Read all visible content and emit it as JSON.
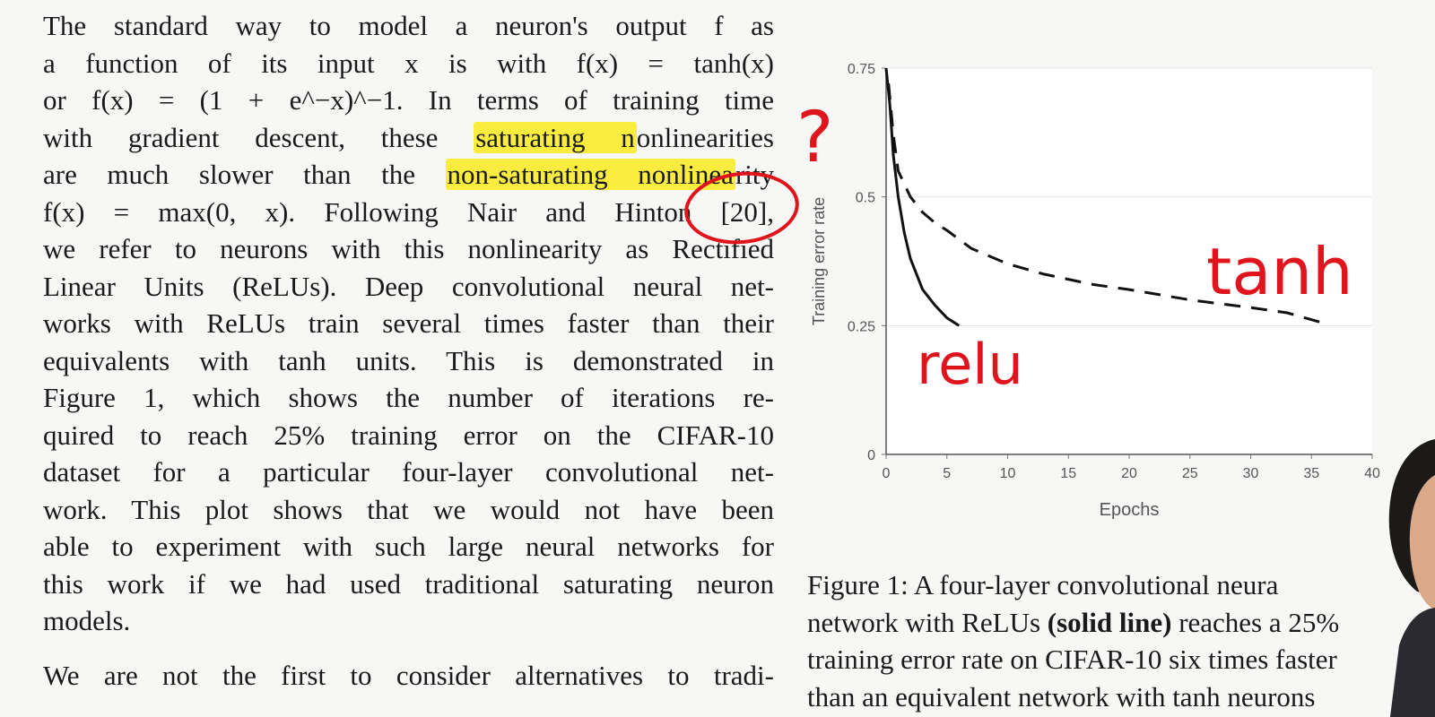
{
  "paragraph1": {
    "lines": [
      "The standard way to model a neuron's output f as",
      "a function of its input x is with f(x) = tanh(x)",
      "or f(x) = (1 + e^−x)^−1. In terms of training time",
      "with gradient descent, these saturating nonlinearities",
      "are much slower than the non-saturating nonlinearity",
      "f(x) = max(0, x). Following Nair and Hinton [20],",
      "we refer to neurons with this nonlinearity as Rectified",
      "Linear Units (ReLUs). Deep convolutional neural net-",
      "works with ReLUs train several times faster than their",
      "equivalents with tanh units. This is demonstrated in",
      "Figure 1, which shows the number of iterations re-",
      "quired to reach 25% training error on the CIFAR-10",
      "dataset for a particular four-layer convolutional net-",
      "work. This plot shows that we would not have been",
      "able to experiment with such large neural networks for",
      "this work if we had used traditional saturating neuron",
      "models."
    ],
    "highlight_1": "saturating n",
    "highlight_2": "non-saturating nonlinea"
  },
  "paragraph2": {
    "lines": [
      "We are not the first to consider alternatives to tradi-"
    ]
  },
  "chart_data": {
    "type": "line",
    "xlabel": "Epochs",
    "ylabel": "Training error rate",
    "xlim": [
      0,
      40
    ],
    "ylim": [
      0,
      0.75
    ],
    "xticks": [
      "0",
      "5",
      "10",
      "15",
      "20",
      "25",
      "30",
      "35",
      "40"
    ],
    "yticks": [
      "0",
      "0.25",
      "0.5",
      "0.75"
    ],
    "grid": true,
    "series": [
      {
        "style": "solid",
        "x": [
          0,
          0.3,
          0.6,
          1,
          1.5,
          2,
          3,
          4,
          5,
          6
        ],
        "y": [
          0.75,
          0.68,
          0.58,
          0.5,
          0.43,
          0.38,
          0.32,
          0.29,
          0.265,
          0.25
        ]
      },
      {
        "style": "dashed",
        "x": [
          0.2,
          0.6,
          1,
          2,
          3,
          4,
          5,
          7,
          10,
          13,
          17,
          20,
          25,
          30,
          33,
          36
        ],
        "y": [
          0.72,
          0.62,
          0.55,
          0.5,
          0.47,
          0.45,
          0.435,
          0.4,
          0.37,
          0.35,
          0.33,
          0.32,
          0.3,
          0.285,
          0.275,
          0.255
        ]
      }
    ]
  },
  "caption": {
    "lines": [
      "Figure 1: A four-layer convolutional neura",
      "network with ReLUs (solid line) reaches a 25%",
      "training error rate on CIFAR-10 six times faster",
      "than an equivalent network with tanh neurons"
    ],
    "bold": "(solid line)"
  },
  "annotations": {
    "question_mark": "?",
    "tanh_label": "tanh",
    "relu_label": "relu",
    "ink_color": "#e0141c"
  },
  "colors": {
    "highlight": "#f7e81e",
    "text": "#1a1a1a",
    "background": "#f7f7f6"
  }
}
